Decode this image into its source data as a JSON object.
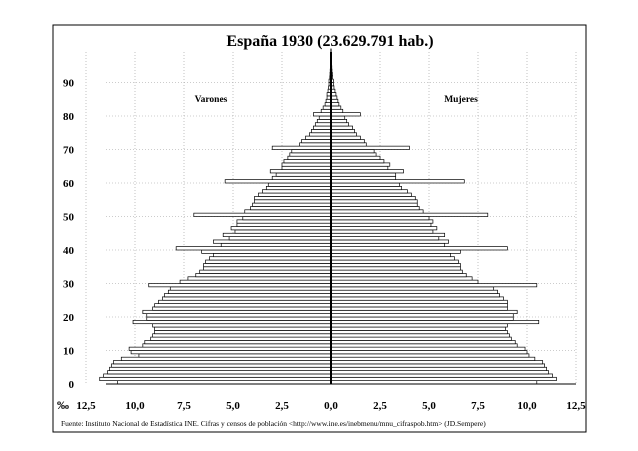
{
  "chart_data": {
    "type": "bar",
    "orientation": "horizontal",
    "title": "España 1930 (23.629.791 hab.)",
    "unit_label": "‰",
    "source": "Fuente: Instituto Nacional de Estadística INE. Cifras y censos de población <http://www.ine.es/inebmenu/mnu_cifraspob.htm> (JD.Sempere)",
    "xlim": [
      -12.5,
      12.5
    ],
    "ylim": [
      0,
      100
    ],
    "x_ticks": [
      "12,5",
      "10,0",
      "7,5",
      "5,0",
      "2,5",
      "0,0",
      "2,5",
      "5,0",
      "7,5",
      "10,0",
      "12,5"
    ],
    "y_ticks": [
      "0",
      "10",
      "20",
      "30",
      "40",
      "50",
      "60",
      "70",
      "80",
      "90"
    ],
    "grid": true,
    "ages": [
      0,
      1,
      2,
      3,
      4,
      5,
      6,
      7,
      8,
      9,
      10,
      11,
      12,
      13,
      14,
      15,
      16,
      17,
      18,
      19,
      20,
      21,
      22,
      23,
      24,
      25,
      26,
      27,
      28,
      29,
      30,
      31,
      32,
      33,
      34,
      35,
      36,
      37,
      38,
      39,
      40,
      41,
      42,
      43,
      44,
      45,
      46,
      47,
      48,
      49,
      50,
      51,
      52,
      53,
      54,
      55,
      56,
      57,
      58,
      59,
      60,
      61,
      62,
      63,
      64,
      65,
      66,
      67,
      68,
      69,
      70,
      71,
      72,
      73,
      74,
      75,
      76,
      77,
      78,
      79,
      80,
      81,
      82,
      83,
      84,
      85,
      86,
      87,
      88,
      89,
      90,
      91,
      92,
      93,
      94,
      95,
      96,
      97,
      98,
      99
    ],
    "series": [
      {
        "name": "Varones",
        "values": [
          10.9,
          11.8,
          11.6,
          11.4,
          11.3,
          11.2,
          11.1,
          10.7,
          9.8,
          10.2,
          10.3,
          9.6,
          9.5,
          9.2,
          9.1,
          9.0,
          9.0,
          9.1,
          10.1,
          9.4,
          9.4,
          9.6,
          9.1,
          9.0,
          8.8,
          8.6,
          8.5,
          8.3,
          8.2,
          9.3,
          7.7,
          7.3,
          6.9,
          6.7,
          6.5,
          6.5,
          6.4,
          6.2,
          6.0,
          6.6,
          7.9,
          5.6,
          6.0,
          5.2,
          5.5,
          4.9,
          5.1,
          4.8,
          4.8,
          4.5,
          7.0,
          4.4,
          4.1,
          4.0,
          3.9,
          3.9,
          3.7,
          3.5,
          3.3,
          3.2,
          5.4,
          3.0,
          2.8,
          3.1,
          2.5,
          2.5,
          2.4,
          2.2,
          2.1,
          2.0,
          3.0,
          1.6,
          1.5,
          1.3,
          1.1,
          1.0,
          0.9,
          0.8,
          0.7,
          0.6,
          0.9,
          0.5,
          0.4,
          0.3,
          0.25,
          0.2,
          0.2,
          0.15,
          0.12,
          0.1,
          0.1,
          0.06,
          0.05,
          0.04,
          0.03,
          0.02,
          0.02,
          0.01,
          0.01,
          0.01
        ]
      },
      {
        "name": "Mujeres",
        "values": [
          10.5,
          11.5,
          11.3,
          11.1,
          11.0,
          10.9,
          10.8,
          10.4,
          10.1,
          10.0,
          9.9,
          9.5,
          9.4,
          9.2,
          9.1,
          9.0,
          8.9,
          9.0,
          10.6,
          9.3,
          9.3,
          9.5,
          9.0,
          9.0,
          9.0,
          8.8,
          8.6,
          8.5,
          8.3,
          10.5,
          7.5,
          7.2,
          6.9,
          6.7,
          6.6,
          6.6,
          6.5,
          6.3,
          6.1,
          6.6,
          9.0,
          5.8,
          6.0,
          5.5,
          5.8,
          5.2,
          5.4,
          5.1,
          5.2,
          5.0,
          8.0,
          4.7,
          4.5,
          4.4,
          4.4,
          4.3,
          4.1,
          3.9,
          3.6,
          3.5,
          6.8,
          3.3,
          3.3,
          3.7,
          2.9,
          3.0,
          2.7,
          2.5,
          2.3,
          2.2,
          4.0,
          1.8,
          1.7,
          1.5,
          1.3,
          1.2,
          1.1,
          0.9,
          0.8,
          0.7,
          1.5,
          0.6,
          0.5,
          0.4,
          0.35,
          0.3,
          0.25,
          0.2,
          0.15,
          0.12,
          0.12,
          0.08,
          0.07,
          0.05,
          0.04,
          0.03,
          0.02,
          0.02,
          0.01,
          0.01
        ]
      }
    ]
  }
}
